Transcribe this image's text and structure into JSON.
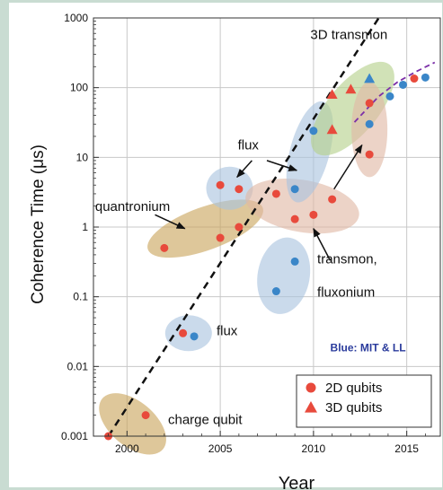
{
  "chart_data": {
    "type": "scatter",
    "xlabel": "Year",
    "ylabel": "Coherence Time (μs)",
    "xlim": [
      1998.2,
      2016.8
    ],
    "ylim": [
      0.001,
      1000
    ],
    "yscale": "log",
    "x_ticks": [
      2000,
      2005,
      2010,
      2015
    ],
    "x_tick_labels": [
      "2000",
      "2005",
      "2010",
      "2015"
    ],
    "y_ticks": [
      0.001,
      0.01,
      0.1,
      1,
      10,
      100,
      1000
    ],
    "y_tick_labels": [
      "0.001",
      "0.01",
      "0.1",
      "1",
      "10",
      "100",
      "1000"
    ],
    "grid": true,
    "colors": {
      "red": "#e84a3c",
      "blue": "#3a86c8",
      "trend": "#111111",
      "trend2": "#7b2fa8",
      "note": "#2a3b9c",
      "tan": "#c9a45c",
      "lightblue": "#a9c4de",
      "salmon": "#e0b8a4",
      "green": "#b5d08a"
    },
    "regions": [
      {
        "label": "charge qubit",
        "cx": 2000.3,
        "cy": 0.0015,
        "rx": 25,
        "ry": 44,
        "angle": -50,
        "color": "tan"
      },
      {
        "label": "flux",
        "cx": 2003.3,
        "cy": 0.03,
        "rx": 26,
        "ry": 20,
        "angle": 0,
        "color": "lightblue"
      },
      {
        "label": "quantronium",
        "cx": 2004.2,
        "cy": 0.95,
        "rx": 68,
        "ry": 24,
        "angle": -20,
        "color": "tan"
      },
      {
        "label": "flux",
        "cx": 2005.5,
        "cy": 3.6,
        "rx": 26,
        "ry": 24,
        "angle": 0,
        "color": "lightblue"
      },
      {
        "label": "transmon, fluxonium",
        "cx": 2008.4,
        "cy": 0.2,
        "rx": 29,
        "ry": 43,
        "angle": 10,
        "color": "lightblue"
      },
      {
        "label": "transmon, fluxonium",
        "cx": 2009.4,
        "cy": 2.0,
        "rx": 64,
        "ry": 29,
        "angle": 10,
        "color": "salmon"
      },
      {
        "label": "flux",
        "cx": 2009.8,
        "cy": 12,
        "rx": 22,
        "ry": 58,
        "angle": 15,
        "color": "lightblue"
      },
      {
        "label": "3D transmon",
        "cx": 2012.1,
        "cy": 50,
        "rx": 28,
        "ry": 64,
        "angle": 40,
        "color": "green"
      },
      {
        "label": "transmon, fluxonium",
        "cx": 2013.0,
        "cy": 25,
        "rx": 20,
        "ry": 53,
        "angle": 0,
        "color": "salmon"
      }
    ],
    "series": [
      {
        "name": "2D qubits",
        "marker": "circle",
        "color": "red",
        "points": [
          {
            "x": 1999,
            "y": 0.001
          },
          {
            "x": 2001,
            "y": 0.002
          },
          {
            "x": 2003,
            "y": 0.03
          },
          {
            "x": 2002,
            "y": 0.5
          },
          {
            "x": 2005,
            "y": 0.7
          },
          {
            "x": 2006,
            "y": 1.0
          },
          {
            "x": 2005,
            "y": 4
          },
          {
            "x": 2006,
            "y": 3.5
          },
          {
            "x": 2008,
            "y": 3
          },
          {
            "x": 2009,
            "y": 1.3
          },
          {
            "x": 2010,
            "y": 1.5
          },
          {
            "x": 2011,
            "y": 2.5
          },
          {
            "x": 2013,
            "y": 11
          },
          {
            "x": 2013,
            "y": 60
          },
          {
            "x": 2015.4,
            "y": 135
          }
        ]
      },
      {
        "name": "MIT & LL",
        "marker": "circle",
        "color": "blue",
        "points": [
          {
            "x": 2003.6,
            "y": 0.027
          },
          {
            "x": 2008,
            "y": 0.12
          },
          {
            "x": 2009,
            "y": 0.32
          },
          {
            "x": 2009,
            "y": 3.5
          },
          {
            "x": 2010,
            "y": 24
          },
          {
            "x": 2013,
            "y": 30
          },
          {
            "x": 2014.1,
            "y": 75
          },
          {
            "x": 2014.8,
            "y": 110
          },
          {
            "x": 2016,
            "y": 140
          }
        ]
      },
      {
        "name": "3D qubits",
        "marker": "triangle",
        "color": "red",
        "points": [
          {
            "x": 2011,
            "y": 25
          },
          {
            "x": 2011,
            "y": 80
          },
          {
            "x": 2012,
            "y": 95
          },
          {
            "x": 2013,
            "y": 135,
            "color": "blue"
          }
        ]
      }
    ],
    "trend_line": {
      "x": [
        1999,
        2013.5
      ],
      "y": [
        0.001,
        1000
      ],
      "style": "dashed",
      "color": "trend"
    },
    "trend_curve": {
      "x": [
        2012.2,
        2013.5,
        2014.5,
        2015.5,
        2016.5
      ],
      "y": [
        32,
        75,
        120,
        170,
        230
      ],
      "style": "dashed",
      "color": "trend2"
    },
    "annotations": [
      {
        "text": "3D transmon",
        "x": 2011.9,
        "y": 500,
        "size": 15,
        "anchor": "middle"
      },
      {
        "text": "flux",
        "x": 2006.5,
        "y": 13,
        "size": 15,
        "anchor": "middle"
      },
      {
        "text": "quantronium",
        "x": 2000.3,
        "y": 1.7,
        "size": 15,
        "anchor": "middle"
      },
      {
        "text": "transmon,",
        "x": 2010.2,
        "y": 0.3,
        "size": 15,
        "anchor": "start"
      },
      {
        "text": "fluxonium",
        "x": 2010.2,
        "y": 0.1,
        "size": 15,
        "anchor": "start"
      },
      {
        "text": "flux",
        "x": 2004.8,
        "y": 0.028,
        "size": 15,
        "anchor": "start"
      },
      {
        "text": "charge qubit",
        "x": 2002.2,
        "y": 0.0015,
        "size": 15,
        "anchor": "start"
      },
      {
        "text": "Blue: MIT & LL",
        "x": 2010.9,
        "y": 0.0165,
        "size": 12,
        "anchor": "start",
        "color": "note",
        "bold": true
      }
    ],
    "arrows": [
      {
        "from": [
          2006.7,
          9
        ],
        "to": [
          2005.9,
          5.2
        ]
      },
      {
        "from": [
          2007.5,
          9
        ],
        "to": [
          2009.1,
          6.5
        ]
      },
      {
        "from": [
          2001.5,
          1.5
        ],
        "to": [
          2003.1,
          0.95
        ]
      },
      {
        "from": [
          2010.9,
          0.33
        ],
        "to": [
          2010.0,
          0.95
        ]
      },
      {
        "from": [
          2011.1,
          3.5
        ],
        "to": [
          2012.6,
          15
        ]
      }
    ],
    "legend": {
      "position": "bottom-right",
      "entries": [
        {
          "label": "2D qubits",
          "marker": "circle",
          "color": "red"
        },
        {
          "label": "3D qubits",
          "marker": "triangle",
          "color": "red"
        }
      ]
    }
  }
}
